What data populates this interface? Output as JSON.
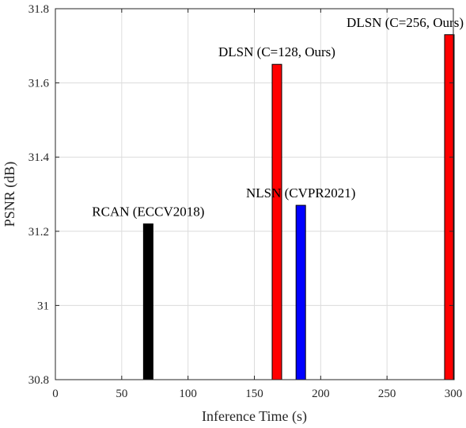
{
  "chart_data": {
    "type": "bar",
    "xlabel": "Inference Time (s)",
    "ylabel": "PSNR (dB)",
    "xlim": [
      0,
      300
    ],
    "ylim": [
      30.8,
      31.8
    ],
    "xticks": [
      "0",
      "50",
      "100",
      "150",
      "200",
      "250",
      "300"
    ],
    "yticks": [
      "30.8",
      "31",
      "31.2",
      "31.4",
      "31.6",
      "31.8"
    ],
    "grid": true,
    "bars": [
      {
        "label": "RCAN (ECCV2018)",
        "x": 70,
        "y": 31.22,
        "color": "#000000"
      },
      {
        "label": "DLSN (C=128, Ours)",
        "x": 167,
        "y": 31.65,
        "color": "#ff0000"
      },
      {
        "label": "NLSN (CVPR2021)",
        "x": 185,
        "y": 31.27,
        "color": "#0000ff"
      },
      {
        "label": "DLSN (C=256, Ours)",
        "x": 297,
        "y": 31.73,
        "color": "#ff0000"
      }
    ]
  }
}
